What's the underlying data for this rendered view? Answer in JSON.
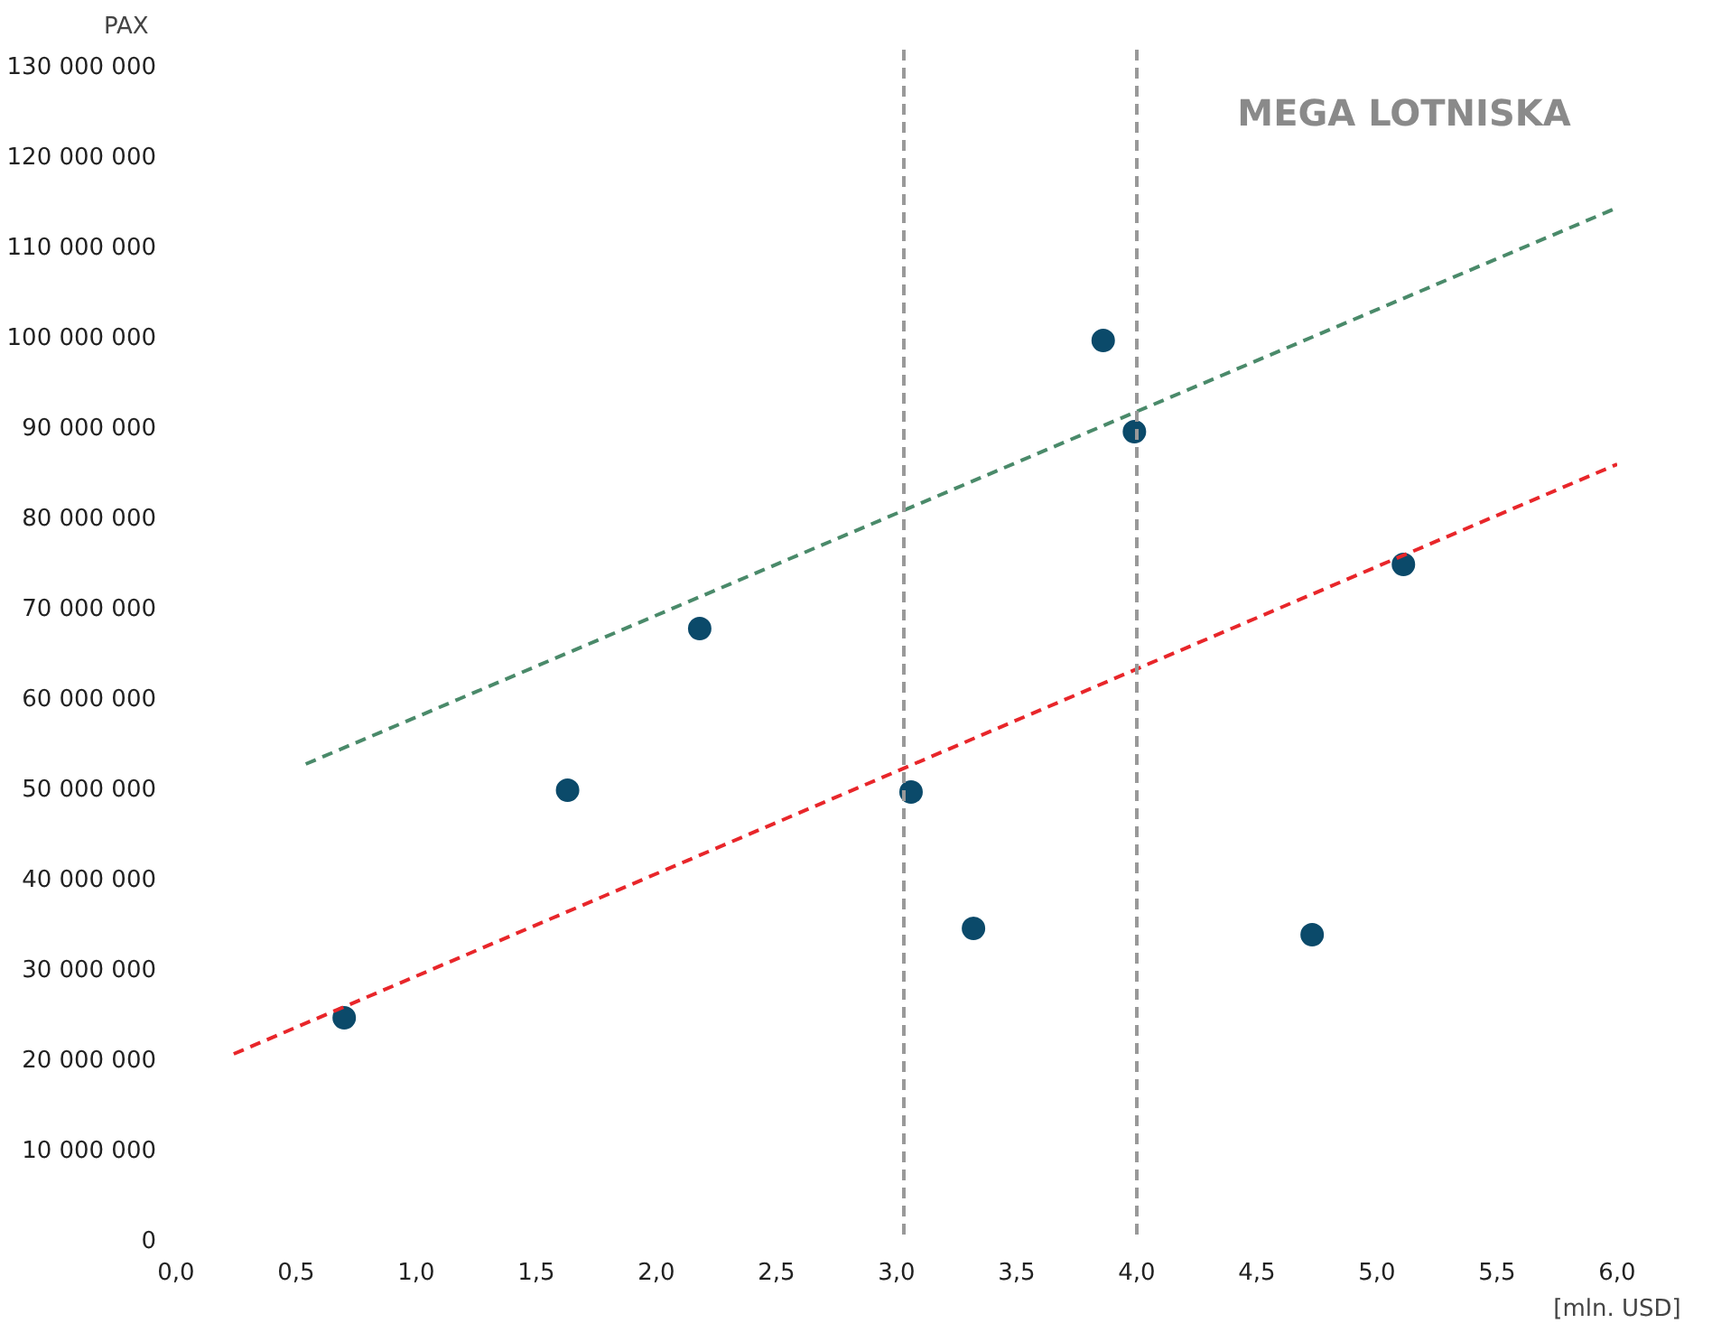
{
  "chart_data": {
    "type": "scatter",
    "ylabel": "PAX",
    "xlabel": "[mln. USD]",
    "x": [
      0.7,
      1.63,
      2.18,
      3.06,
      3.32,
      3.86,
      3.99,
      4.73,
      5.11
    ],
    "series": [
      {
        "color": "#0b4a6a",
        "values": [
          24800000,
          50000000,
          67900000,
          49800000,
          34700000,
          99800000,
          89700000,
          34000000,
          75000000
        ]
      },
      {
        "type": "line",
        "color": "#e8262a",
        "line_style": "dashed",
        "marker": "none",
        "x": [
          0.24,
          6.0
        ],
        "values": [
          20800000,
          86100000
        ]
      },
      {
        "type": "line",
        "color": "#4a8a6a",
        "line_style": "dashed",
        "marker": "none",
        "x": [
          0.54,
          6.0
        ],
        "values": [
          52900000,
          114500000
        ]
      }
    ],
    "marker": "circle",
    "grid": false,
    "xlim": [
      0,
      6.0
    ],
    "ylim": [
      0,
      132000000
    ],
    "xticks": [
      {
        "value": 0,
        "label": "0,0"
      },
      {
        "value": 0.5,
        "label": "0,5"
      },
      {
        "value": 1,
        "label": "1,0"
      },
      {
        "value": 1.5,
        "label": "1,5"
      },
      {
        "value": 2,
        "label": "2,0"
      },
      {
        "value": 2.5,
        "label": "2,5"
      },
      {
        "value": 3,
        "label": "3,0"
      },
      {
        "value": 3.5,
        "label": "3,5"
      },
      {
        "value": 4,
        "label": "4,0"
      },
      {
        "value": 4.5,
        "label": "4,5"
      },
      {
        "value": 5,
        "label": "5,0"
      },
      {
        "value": 5.5,
        "label": "5,5"
      },
      {
        "value": 6,
        "label": "6,0"
      }
    ],
    "yticks": [
      0,
      {
        "value": 10000000,
        "label": "10 000 000"
      },
      {
        "value": 20000000,
        "label": "20 000 000"
      },
      {
        "value": 30000000,
        "label": "30 000 000"
      },
      {
        "value": 40000000,
        "label": "40 000 000"
      },
      {
        "value": 50000000,
        "label": "50 000 000"
      },
      {
        "value": 60000000,
        "label": "60 000 000"
      },
      {
        "value": 70000000,
        "label": "70 000 000"
      },
      {
        "value": 80000000,
        "label": "80 000 000"
      },
      {
        "value": 90000000,
        "label": "90 000 000"
      },
      {
        "value": 100000000,
        "label": "100 000 000"
      },
      {
        "value": 110000000,
        "label": "110 000 000"
      },
      {
        "value": 120000000,
        "label": "120 000 000"
      },
      {
        "value": 130000000,
        "label": "130 000 000"
      }
    ],
    "ref_lines": [
      {
        "axis": "x",
        "value": 3.03,
        "color": "#999999",
        "line_style": "dashed"
      },
      {
        "axis": "x",
        "value": 4.0,
        "color": "#999999",
        "line_style": "dashed"
      }
    ],
    "annotations": [
      "MEGA LOTNISKA"
    ]
  }
}
